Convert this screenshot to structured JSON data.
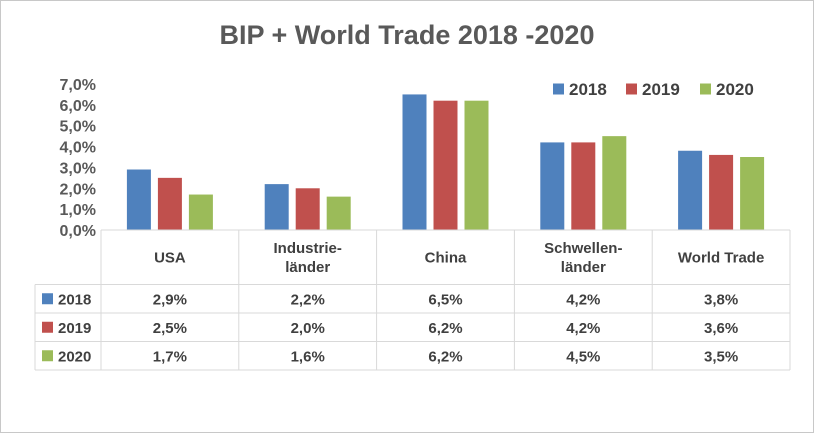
{
  "chart_data": {
    "type": "bar",
    "title": "BIP + World Trade 2018 -2020",
    "categories": [
      [
        "USA"
      ],
      [
        "Industrie-",
        "länder"
      ],
      [
        "China"
      ],
      [
        "Schwellen-",
        "länder"
      ],
      [
        "World Trade"
      ]
    ],
    "series": [
      {
        "name": "2018",
        "color": "#4f81bd",
        "values": [
          2.9,
          2.2,
          6.5,
          4.2,
          3.8
        ],
        "labels": [
          "2,9%",
          "2,2%",
          "6,5%",
          "4,2%",
          "3,8%"
        ]
      },
      {
        "name": "2019",
        "color": "#c0504d",
        "values": [
          2.5,
          2.0,
          6.2,
          4.2,
          3.6
        ],
        "labels": [
          "2,5%",
          "2,0%",
          "6,2%",
          "4,2%",
          "3,6%"
        ]
      },
      {
        "name": "2020",
        "color": "#9bbb59",
        "values": [
          1.7,
          1.6,
          6.2,
          4.5,
          3.5
        ],
        "labels": [
          "1,7%",
          "1,6%",
          "6,2%",
          "4,5%",
          "3,5%"
        ]
      }
    ],
    "yticks": [
      0,
      1,
      2,
      3,
      4,
      5,
      6,
      7
    ],
    "ytick_labels": [
      "0,0%",
      "1,0%",
      "2,0%",
      "3,0%",
      "4,0%",
      "5,0%",
      "6,0%",
      "7,0%"
    ],
    "ylim": [
      0,
      7
    ],
    "xlabel": "",
    "ylabel": "",
    "grid": false,
    "legend_position": "top-right",
    "data_table": true
  }
}
